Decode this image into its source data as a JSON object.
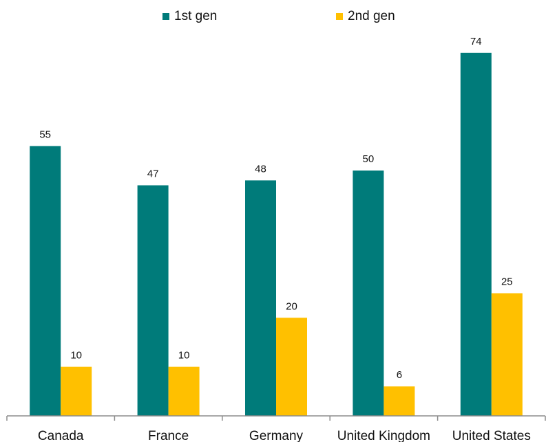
{
  "chart_data": {
    "type": "bar",
    "title": "",
    "xlabel": "",
    "ylabel": "",
    "categories": [
      "Canada",
      "France",
      "Germany",
      "United Kingdom",
      "United States"
    ],
    "series": [
      {
        "name": "1st gen",
        "color": "#007b7a",
        "values": [
          55,
          47,
          48,
          50,
          74
        ]
      },
      {
        "name": "2nd gen",
        "color": "#ffc000",
        "values": [
          10,
          10,
          20,
          6,
          25
        ]
      }
    ],
    "ylim": [
      0,
      80
    ],
    "grid": false,
    "legend_position": "top-center",
    "data_labels": true
  }
}
